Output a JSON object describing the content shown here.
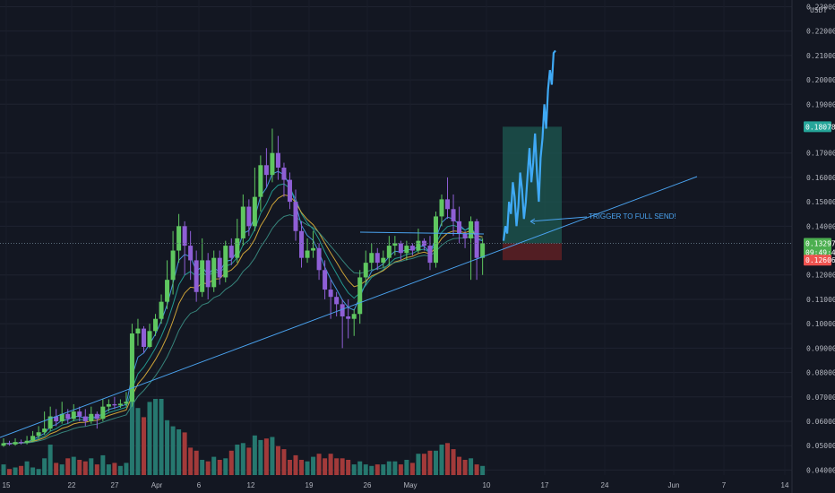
{
  "chart_data": {
    "type": "candlestick",
    "currency": "USDT",
    "y_axis": {
      "min": 0.035,
      "max": 0.232,
      "ticks": [
        "0.23000",
        "0.22000",
        "0.21000",
        "0.20000",
        "0.19000",
        "0.17000",
        "0.16000",
        "0.15000",
        "0.14000",
        "0.12000",
        "0.11000",
        "0.10000",
        "0.09000",
        "0.08000",
        "0.07000",
        "0.06000",
        "0.05000",
        "0.04000"
      ]
    },
    "x_axis": {
      "ticks": [
        "15",
        "22",
        "27",
        "Apr",
        "6",
        "12",
        "19",
        "26",
        "May",
        "10",
        "17",
        "24",
        "Jun",
        "7",
        "14"
      ]
    },
    "price_badges": [
      {
        "label": "0.18078",
        "price": 0.18078,
        "color": "#26a69a"
      },
      {
        "label": "0.13297",
        "price": 0.13297,
        "color": "#4caf50"
      },
      {
        "label": "09:49:44",
        "price": 0.13,
        "color": "#4caf50"
      },
      {
        "label": "0.12606",
        "price": 0.12606,
        "color": "#ef5350"
      }
    ],
    "annotation": "TRIGGER TO FULL SEND!",
    "candles": [
      [
        0.05,
        0.051,
        0.053,
        0.0495
      ],
      [
        0.051,
        0.0505,
        0.052,
        0.05
      ],
      [
        0.0505,
        0.0515,
        0.053,
        0.05
      ],
      [
        0.0515,
        0.0512,
        0.0525,
        0.0505
      ],
      [
        0.0512,
        0.052,
        0.054,
        0.0505
      ],
      [
        0.052,
        0.054,
        0.056,
        0.0515
      ],
      [
        0.054,
        0.0555,
        0.058,
        0.053
      ],
      [
        0.0555,
        0.057,
        0.064,
        0.0545
      ],
      [
        0.057,
        0.062,
        0.066,
        0.056
      ],
      [
        0.062,
        0.06,
        0.065,
        0.058
      ],
      [
        0.06,
        0.063,
        0.068,
        0.059
      ],
      [
        0.063,
        0.061,
        0.065,
        0.059
      ],
      [
        0.061,
        0.064,
        0.067,
        0.06
      ],
      [
        0.064,
        0.062,
        0.066,
        0.06
      ],
      [
        0.062,
        0.06,
        0.065,
        0.058
      ],
      [
        0.06,
        0.063,
        0.066,
        0.059
      ],
      [
        0.063,
        0.061,
        0.064,
        0.057
      ],
      [
        0.061,
        0.066,
        0.069,
        0.06
      ],
      [
        0.066,
        0.067,
        0.069,
        0.064
      ],
      [
        0.067,
        0.0665,
        0.07,
        0.065
      ],
      [
        0.0665,
        0.0672,
        0.069,
        0.0655
      ],
      [
        0.0672,
        0.068,
        0.072,
        0.066
      ],
      [
        0.068,
        0.096,
        0.1,
        0.066
      ],
      [
        0.096,
        0.098,
        0.102,
        0.091
      ],
      [
        0.098,
        0.0905,
        0.099,
        0.088
      ],
      [
        0.0905,
        0.097,
        0.1,
        0.09
      ],
      [
        0.097,
        0.102,
        0.104,
        0.095
      ],
      [
        0.102,
        0.109,
        0.112,
        0.1
      ],
      [
        0.109,
        0.118,
        0.126,
        0.106
      ],
      [
        0.118,
        0.13,
        0.138,
        0.112
      ],
      [
        0.13,
        0.14,
        0.145,
        0.125
      ],
      [
        0.14,
        0.132,
        0.142,
        0.12
      ],
      [
        0.132,
        0.126,
        0.138,
        0.118
      ],
      [
        0.126,
        0.113,
        0.13,
        0.109
      ],
      [
        0.113,
        0.126,
        0.135,
        0.111
      ],
      [
        0.126,
        0.115,
        0.129,
        0.11
      ],
      [
        0.115,
        0.127,
        0.13,
        0.113
      ],
      [
        0.127,
        0.119,
        0.13,
        0.116
      ],
      [
        0.119,
        0.132,
        0.134,
        0.117
      ],
      [
        0.132,
        0.127,
        0.135,
        0.124
      ],
      [
        0.127,
        0.135,
        0.143,
        0.125
      ],
      [
        0.135,
        0.148,
        0.153,
        0.132
      ],
      [
        0.148,
        0.14,
        0.151,
        0.136
      ],
      [
        0.14,
        0.152,
        0.164,
        0.138
      ],
      [
        0.152,
        0.165,
        0.169,
        0.146
      ],
      [
        0.165,
        0.161,
        0.172,
        0.156
      ],
      [
        0.161,
        0.17,
        0.18,
        0.158
      ],
      [
        0.17,
        0.164,
        0.177,
        0.159
      ],
      [
        0.164,
        0.159,
        0.166,
        0.152
      ],
      [
        0.159,
        0.15,
        0.162,
        0.147
      ],
      [
        0.15,
        0.138,
        0.155,
        0.134
      ],
      [
        0.138,
        0.127,
        0.142,
        0.123
      ],
      [
        0.127,
        0.13,
        0.135,
        0.125
      ],
      [
        0.13,
        0.131,
        0.138,
        0.127
      ],
      [
        0.131,
        0.122,
        0.133,
        0.118
      ],
      [
        0.122,
        0.114,
        0.126,
        0.11
      ],
      [
        0.114,
        0.111,
        0.118,
        0.102
      ],
      [
        0.111,
        0.108,
        0.113,
        0.103
      ],
      [
        0.108,
        0.103,
        0.11,
        0.09
      ],
      [
        0.103,
        0.102,
        0.11,
        0.094
      ],
      [
        0.102,
        0.104,
        0.106,
        0.095
      ],
      [
        0.104,
        0.119,
        0.122,
        0.1
      ],
      [
        0.119,
        0.125,
        0.13,
        0.116
      ],
      [
        0.125,
        0.129,
        0.133,
        0.122
      ],
      [
        0.129,
        0.125,
        0.131,
        0.122
      ],
      [
        0.125,
        0.127,
        0.13,
        0.123
      ],
      [
        0.127,
        0.132,
        0.136,
        0.124
      ],
      [
        0.132,
        0.133,
        0.136,
        0.128
      ],
      [
        0.133,
        0.129,
        0.134,
        0.126
      ],
      [
        0.129,
        0.132,
        0.134,
        0.126
      ],
      [
        0.132,
        0.13,
        0.133,
        0.128
      ],
      [
        0.13,
        0.134,
        0.139,
        0.129
      ],
      [
        0.134,
        0.132,
        0.135,
        0.13
      ],
      [
        0.132,
        0.125,
        0.136,
        0.122
      ],
      [
        0.125,
        0.144,
        0.146,
        0.123
      ],
      [
        0.144,
        0.151,
        0.153,
        0.14
      ],
      [
        0.151,
        0.147,
        0.16,
        0.143
      ],
      [
        0.147,
        0.142,
        0.153,
        0.136
      ],
      [
        0.142,
        0.137,
        0.148,
        0.133
      ],
      [
        0.137,
        0.135,
        0.138,
        0.131
      ],
      [
        0.135,
        0.142,
        0.144,
        0.118
      ],
      [
        0.142,
        0.127,
        0.143,
        0.118
      ],
      [
        0.127,
        0.133,
        0.135,
        0.12
      ]
    ],
    "volumes": [
      0.35,
      0.2,
      0.25,
      0.3,
      0.45,
      0.25,
      0.2,
      0.55,
      1.0,
      0.4,
      0.35,
      0.55,
      0.6,
      0.5,
      0.45,
      0.55,
      0.35,
      0.65,
      0.35,
      0.4,
      0.3,
      0.4,
      3.3,
      2.2,
      1.9,
      2.4,
      2.5,
      2.5,
      1.8,
      1.6,
      1.5,
      1.4,
      0.9,
      0.8,
      0.5,
      0.45,
      0.6,
      0.5,
      0.55,
      0.8,
      1.0,
      1.05,
      0.9,
      1.3,
      1.15,
      1.2,
      1.25,
      0.95,
      0.85,
      0.5,
      0.65,
      0.5,
      0.45,
      0.6,
      0.7,
      0.55,
      0.7,
      0.55,
      0.55,
      0.5,
      0.35,
      0.45,
      0.35,
      0.3,
      0.35,
      0.35,
      0.45,
      0.45,
      0.35,
      0.5,
      0.4,
      0.7,
      0.7,
      0.8,
      0.8,
      1.0,
      1.05,
      0.85,
      0.6,
      0.5,
      0.55,
      0.35,
      0.3
    ],
    "projection_prices": [
      0.134,
      0.14,
      0.137,
      0.15,
      0.145,
      0.158,
      0.152,
      0.14,
      0.148,
      0.162,
      0.155,
      0.143,
      0.15,
      0.161,
      0.172,
      0.158,
      0.166,
      0.178,
      0.162,
      0.15,
      0.168,
      0.176,
      0.19,
      0.18,
      0.196,
      0.204,
      0.198,
      0.211,
      0.212
    ]
  }
}
